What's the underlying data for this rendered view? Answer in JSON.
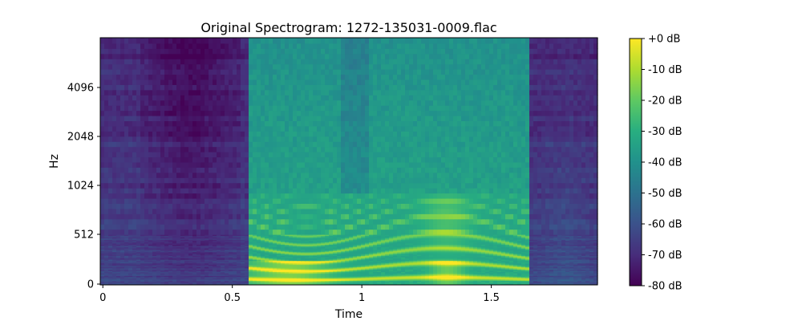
{
  "chart_data": {
    "type": "heatmap",
    "title": "Original Spectrogram: 1272-135031-0009.flac",
    "xlabel": "Time",
    "ylabel": "Hz",
    "x_ticks": [
      {
        "value": 0,
        "label": "0"
      },
      {
        "value": 0.5,
        "label": "0.5"
      },
      {
        "value": 1,
        "label": "1"
      },
      {
        "value": 1.5,
        "label": "1.5"
      }
    ],
    "y_ticks": [
      {
        "value": 0,
        "label": "0"
      },
      {
        "value": 512,
        "label": "512"
      },
      {
        "value": 1024,
        "label": "1024"
      },
      {
        "value": 2048,
        "label": "2048"
      },
      {
        "value": 4096,
        "label": "4096"
      }
    ],
    "y_scale": "symlog (mel-like, base 2, linear below 512)",
    "xlim": [
      -0.01,
      1.91
    ],
    "colorbar": {
      "range": [
        -80,
        0
      ],
      "colormap": "viridis",
      "ticks": [
        {
          "value": 0,
          "label": "+0 dB"
        },
        {
          "value": -10,
          "label": "-10 dB"
        },
        {
          "value": -20,
          "label": "-20 dB"
        },
        {
          "value": -30,
          "label": "-30 dB"
        },
        {
          "value": -40,
          "label": "-40 dB"
        },
        {
          "value": -50,
          "label": "-50 dB"
        },
        {
          "value": -60,
          "label": "-60 dB"
        },
        {
          "value": -70,
          "label": "-70 dB"
        },
        {
          "value": -80,
          "label": "-80 dB"
        }
      ]
    },
    "speech_region_seconds": [
      0.56,
      1.64
    ]
  }
}
